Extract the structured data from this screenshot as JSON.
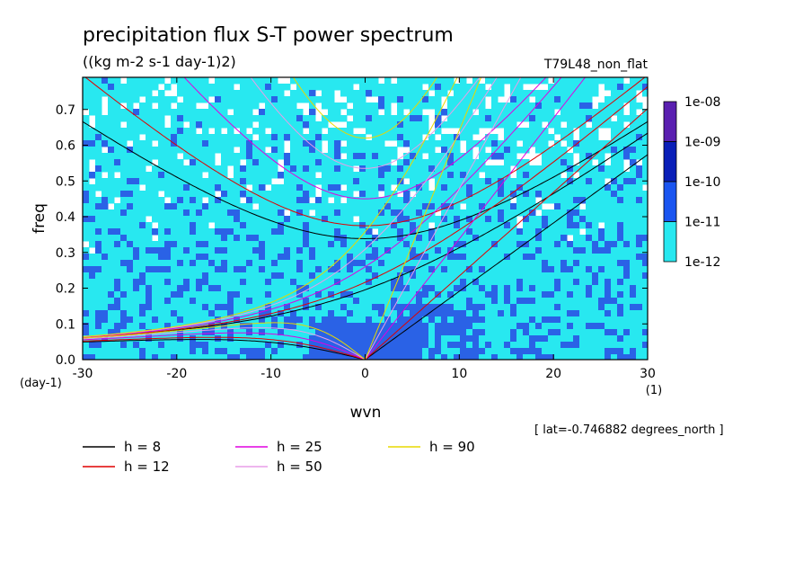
{
  "chart_data": {
    "type": "heatmap",
    "title": "precipitation flux S-T power spectrum",
    "subtitle": "((kg m-2 s-1 day-1)2)",
    "run_label": "T79L48_non_flat",
    "xlabel": "wvn",
    "ylabel": "freq",
    "x_unit": "(1)",
    "y_unit": "(day-1)",
    "xlim": [
      -30,
      30
    ],
    "ylim": [
      0,
      0.79
    ],
    "x_ticks": [
      "-30",
      "-20",
      "-10",
      "0",
      "10",
      "20",
      "30"
    ],
    "y_ticks": [
      "0.0",
      "0.1",
      "0.2",
      "0.3",
      "0.4",
      "0.5",
      "0.6",
      "0.7"
    ],
    "footnote": "[ lat=-0.746882 degrees_north ]",
    "colorbar": {
      "labels": [
        "1e-08",
        "1e-09",
        "1e-10",
        "1e-11",
        "1e-12"
      ],
      "colors": [
        "#5a1fb0",
        "#0a1fb8",
        "#1a55f0",
        "#3c8cf8",
        "#28e8f0"
      ]
    },
    "contour_colors": {
      "background": "#ffffff",
      "low": "#28e8f0",
      "mid": "#2a62e6"
    },
    "series": [
      {
        "name": "h =  8",
        "h": 8,
        "color": "#000000"
      },
      {
        "name": "h = 12",
        "h": 12,
        "color": "#e00000"
      },
      {
        "name": "h = 25",
        "h": 25,
        "color": "#e000e0"
      },
      {
        "name": "h = 50",
        "h": 50,
        "color": "#e89ee8"
      },
      {
        "name": "h = 90",
        "h": 90,
        "color": "#e8d800"
      }
    ],
    "grid": false
  }
}
